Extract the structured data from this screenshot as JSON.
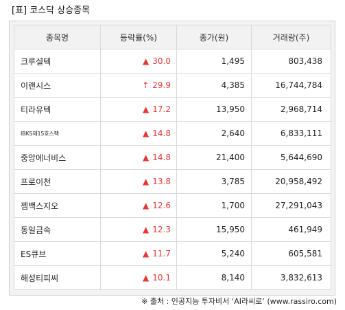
{
  "title": "[표] 코스닥 상승종목",
  "colors": {
    "up": "#e53935",
    "header_bg": "#f2f2f2",
    "frame_bg": "#f3f3f3",
    "border": "#d9d9d9"
  },
  "table": {
    "headers": [
      "종목명",
      "등락률(%)",
      "종가(원)",
      "거래량(주)"
    ],
    "rows": [
      {
        "name": "크루셜텍",
        "icon": "▲",
        "rate": "30.0",
        "price": "1,495",
        "volume": "803,438"
      },
      {
        "name": "이랜시스",
        "icon": "↑",
        "rate": "29.9",
        "price": "4,385",
        "volume": "16,744,784"
      },
      {
        "name": "티라유텍",
        "icon": "▲",
        "rate": "17.2",
        "price": "13,950",
        "volume": "2,968,714"
      },
      {
        "name": "IBKS제15호스팩",
        "icon": "▲",
        "rate": "14.8",
        "price": "2,640",
        "volume": "6,833,111"
      },
      {
        "name": "중앙에너비스",
        "icon": "▲",
        "rate": "14.8",
        "price": "21,400",
        "volume": "5,644,690"
      },
      {
        "name": "프로이천",
        "icon": "▲",
        "rate": "13.8",
        "price": "3,785",
        "volume": "20,958,492"
      },
      {
        "name": "젬백스지오",
        "icon": "▲",
        "rate": "12.6",
        "price": "1,700",
        "volume": "27,291,043"
      },
      {
        "name": "동일금속",
        "icon": "▲",
        "rate": "12.3",
        "price": "15,950",
        "volume": "461,949"
      },
      {
        "name": "ES큐브",
        "icon": "▲",
        "rate": "11.7",
        "price": "5,240",
        "volume": "605,581"
      },
      {
        "name": "해성티피씨",
        "icon": "▲",
        "rate": "10.1",
        "price": "8,140",
        "volume": "3,832,613"
      }
    ]
  },
  "source": "※ 출처 : 인공지능 투자비서 ‘AI라씨로’ (www.rassiro.com)"
}
